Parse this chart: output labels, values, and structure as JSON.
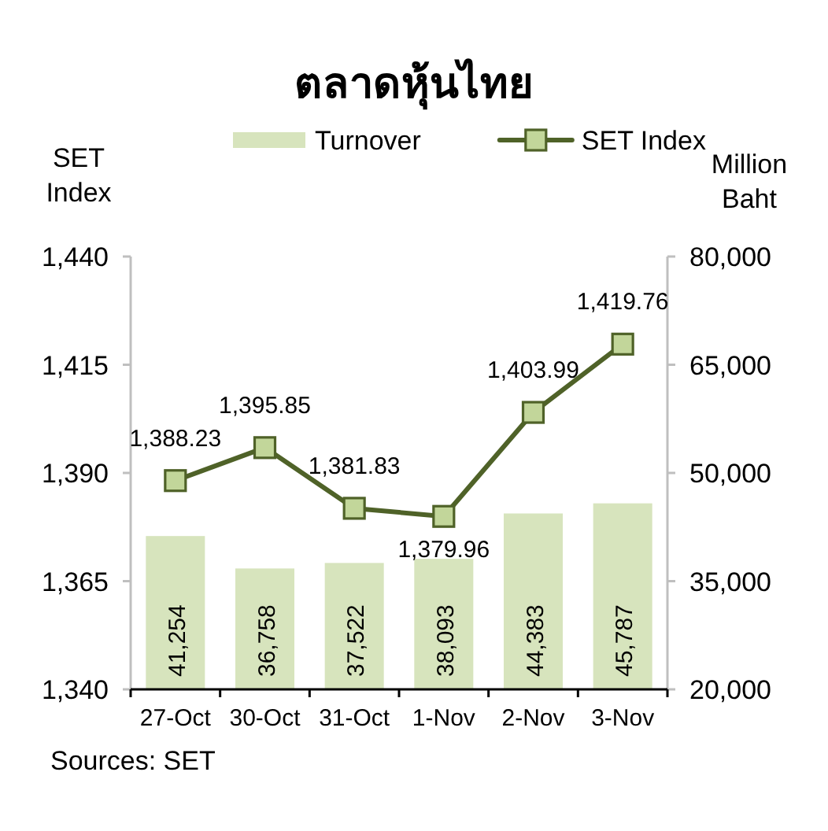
{
  "chart_data": {
    "type": "bar",
    "title": "ตลาดหุ้นไทย",
    "ylabel": "SET Index",
    "y2label": "Million Baht",
    "categories": [
      "27-Oct",
      "30-Oct",
      "31-Oct",
      "1-Nov",
      "2-Nov",
      "3-Nov"
    ],
    "series": [
      {
        "name": "Turnover",
        "axis": "y2",
        "color": "#d7e4bd",
        "values": [
          41254,
          36758,
          37522,
          38093,
          44383,
          45787
        ],
        "value_labels": [
          "41,254",
          "36,758",
          "37,522",
          "38,093",
          "44,383",
          "45,787"
        ]
      },
      {
        "name": "SET Index",
        "type": "line",
        "color": "#4f6228",
        "marker": "square",
        "values": [
          1388.23,
          1395.85,
          1381.83,
          1379.96,
          1403.99,
          1419.76
        ],
        "value_labels": [
          "1,388.23",
          "1,395.85",
          "1,381.83",
          "1,379.96",
          "1,403.99",
          "1,419.76"
        ]
      }
    ],
    "ylim": [
      1340,
      1440
    ],
    "yticks": [
      {
        "value": 1340,
        "label": "1,340"
      },
      {
        "value": 1365,
        "label": "1,365"
      },
      {
        "value": 1390,
        "label": "1,390"
      },
      {
        "value": 1415,
        "label": "1,415"
      },
      {
        "value": 1440,
        "label": "1,440"
      }
    ],
    "y2lim": [
      20000,
      80000
    ],
    "y2ticks": [
      {
        "value": 20000,
        "label": "20,000"
      },
      {
        "value": 35000,
        "label": "35,000"
      },
      {
        "value": 50000,
        "label": "50,000"
      },
      {
        "value": 65000,
        "label": "65,000"
      },
      {
        "value": 80000,
        "label": "80,000"
      }
    ],
    "legend": "top",
    "annotations": [
      "Sources: SET"
    ]
  }
}
